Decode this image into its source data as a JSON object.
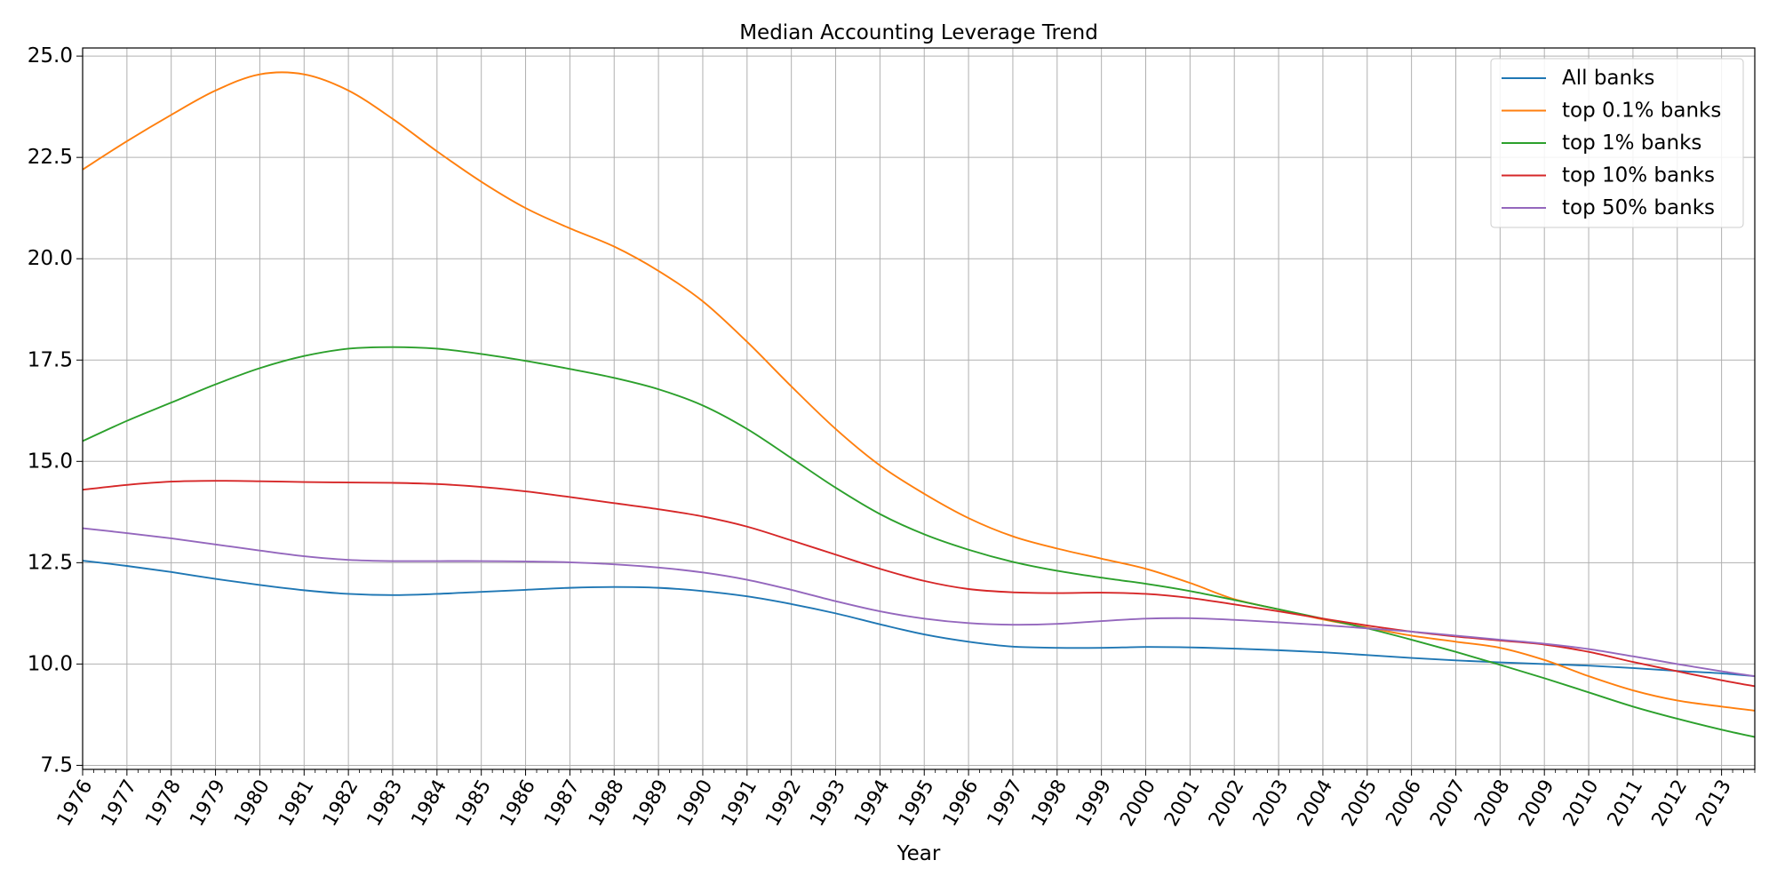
{
  "chart_data": {
    "type": "line",
    "title": "Median Accounting Leverage Trend",
    "xlabel": "Year",
    "ylabel": "",
    "xlim": [
      1976,
      2013.75
    ],
    "ylim": [
      7.4,
      25.2
    ],
    "grid": true,
    "legend_position": "top-right",
    "x_ticks": [
      "1976",
      "1977",
      "1978",
      "1979",
      "1980",
      "1981",
      "1982",
      "1983",
      "1984",
      "1985",
      "1986",
      "1987",
      "1988",
      "1989",
      "1990",
      "1991",
      "1992",
      "1993",
      "1994",
      "1995",
      "1996",
      "1997",
      "1998",
      "1999",
      "2000",
      "2001",
      "2002",
      "2003",
      "2004",
      "2005",
      "2006",
      "2007",
      "2008",
      "2009",
      "2010",
      "2011",
      "2012",
      "2013"
    ],
    "y_ticks": [
      "7.5",
      "10.0",
      "12.5",
      "15.0",
      "17.5",
      "20.0",
      "22.5",
      "25.0"
    ],
    "x": [
      1976,
      1977,
      1978,
      1979,
      1980,
      1981,
      1982,
      1983,
      1984,
      1985,
      1986,
      1987,
      1988,
      1989,
      1990,
      1991,
      1992,
      1993,
      1994,
      1995,
      1996,
      1997,
      1998,
      1999,
      2000,
      2001,
      2002,
      2003,
      2004,
      2005,
      2006,
      2007,
      2008,
      2009,
      2010,
      2011,
      2012,
      2013,
      2013.75
    ],
    "series": [
      {
        "name": "All banks",
        "color": "#1f77b4",
        "values": [
          12.55,
          12.42,
          12.27,
          12.1,
          11.95,
          11.82,
          11.73,
          11.7,
          11.73,
          11.78,
          11.83,
          11.88,
          11.9,
          11.88,
          11.8,
          11.67,
          11.48,
          11.25,
          10.98,
          10.73,
          10.55,
          10.43,
          10.4,
          10.4,
          10.42,
          10.41,
          10.38,
          10.34,
          10.29,
          10.22,
          10.15,
          10.09,
          10.04,
          10.0,
          9.96,
          9.9,
          9.83,
          9.77,
          9.7
        ]
      },
      {
        "name": "top 0.1% banks",
        "color": "#ff7f0e",
        "values": [
          22.2,
          22.9,
          23.55,
          24.15,
          24.55,
          24.55,
          24.15,
          23.45,
          22.65,
          21.9,
          21.25,
          20.75,
          20.3,
          19.7,
          18.95,
          17.95,
          16.85,
          15.8,
          14.9,
          14.2,
          13.6,
          13.15,
          12.85,
          12.6,
          12.35,
          12.0,
          11.6,
          11.35,
          11.1,
          10.9,
          10.7,
          10.55,
          10.4,
          10.1,
          9.7,
          9.35,
          9.1,
          8.95,
          8.85
        ]
      },
      {
        "name": "top 1% banks",
        "color": "#2ca02c",
        "values": [
          15.5,
          16.0,
          16.45,
          16.9,
          17.3,
          17.6,
          17.78,
          17.82,
          17.78,
          17.65,
          17.48,
          17.28,
          17.06,
          16.78,
          16.38,
          15.8,
          15.08,
          14.35,
          13.7,
          13.2,
          12.82,
          12.52,
          12.3,
          12.13,
          11.98,
          11.8,
          11.58,
          11.35,
          11.12,
          10.88,
          10.6,
          10.3,
          9.98,
          9.65,
          9.3,
          8.95,
          8.65,
          8.38,
          8.2
        ]
      },
      {
        "name": "top 10% banks",
        "color": "#d62728",
        "values": [
          14.3,
          14.42,
          14.5,
          14.52,
          14.51,
          14.49,
          14.48,
          14.47,
          14.44,
          14.37,
          14.26,
          14.12,
          13.97,
          13.82,
          13.64,
          13.39,
          13.05,
          12.7,
          12.35,
          12.05,
          11.85,
          11.77,
          11.75,
          11.76,
          11.73,
          11.63,
          11.47,
          11.3,
          11.12,
          10.95,
          10.8,
          10.68,
          10.58,
          10.48,
          10.3,
          10.05,
          9.82,
          9.6,
          9.45
        ]
      },
      {
        "name": "top 50% banks",
        "color": "#9467bd",
        "values": [
          13.35,
          13.23,
          13.1,
          12.95,
          12.8,
          12.66,
          12.57,
          12.54,
          12.54,
          12.54,
          12.53,
          12.51,
          12.46,
          12.38,
          12.26,
          12.08,
          11.83,
          11.55,
          11.3,
          11.12,
          11.01,
          10.97,
          10.99,
          11.06,
          11.12,
          11.13,
          11.09,
          11.03,
          10.96,
          10.88,
          10.8,
          10.7,
          10.6,
          10.5,
          10.37,
          10.19,
          10.0,
          9.82,
          9.7
        ]
      }
    ]
  }
}
